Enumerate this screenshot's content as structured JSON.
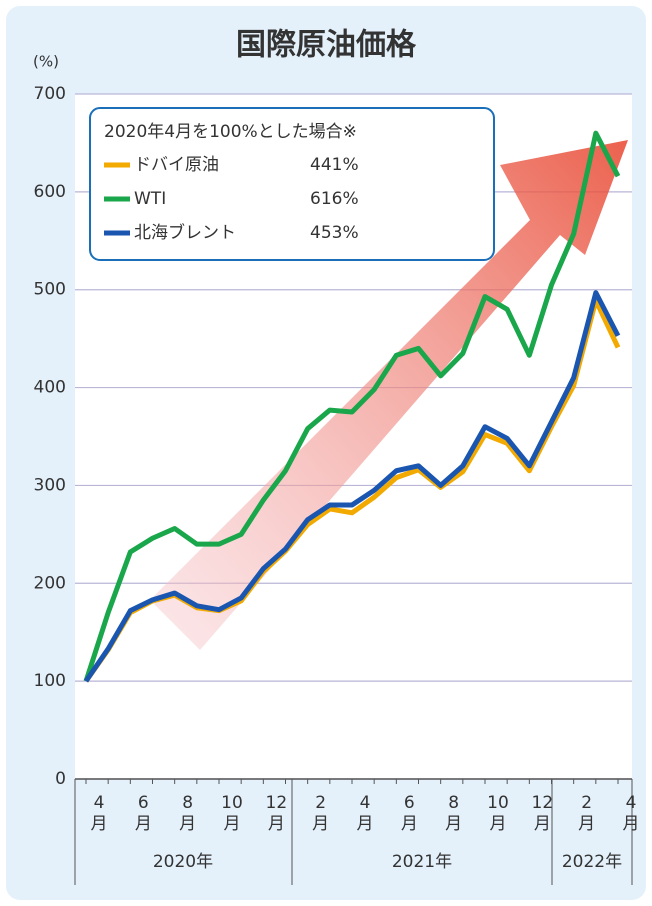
{
  "chart_data": {
    "type": "line",
    "title": "国際原油価格",
    "y_unit": "(%)",
    "legend_title": "2020年4月を100%とした場合※",
    "categories": [
      "4月",
      null,
      "6月",
      null,
      "8月",
      null,
      "10月",
      null,
      "12月",
      null,
      "2月",
      null,
      "4月",
      null,
      "6月",
      null,
      "8月",
      null,
      "10月",
      null,
      "12月",
      null,
      "2月",
      null,
      "4月"
    ],
    "year_labels": [
      "2020年",
      "2021年",
      "2022年"
    ],
    "ylim": [
      0,
      700
    ],
    "yticks": [
      0,
      100,
      200,
      300,
      400,
      500,
      600,
      700
    ],
    "grid": true,
    "series": [
      {
        "name": "ドバイ原油",
        "color": "#f2a900",
        "legend_value": "441%",
        "values": [
          100,
          132,
          170,
          182,
          188,
          175,
          172,
          182,
          212,
          233,
          260,
          276,
          272,
          288,
          308,
          316,
          298,
          314,
          352,
          343,
          315,
          360,
          402,
          489,
          441
        ]
      },
      {
        "name": "WTI",
        "color": "#1aa64a",
        "legend_value": "616%",
        "values": [
          100,
          170,
          232,
          246,
          256,
          240,
          240,
          250,
          285,
          315,
          358,
          377,
          375,
          398,
          433,
          440,
          412,
          435,
          493,
          480,
          433,
          505,
          557,
          660,
          616
        ]
      },
      {
        "name": "北海ブレント",
        "color": "#1a56b0",
        "legend_value": "453%",
        "values": [
          100,
          133,
          172,
          183,
          190,
          177,
          173,
          185,
          215,
          235,
          265,
          280,
          280,
          295,
          315,
          320,
          300,
          320,
          360,
          348,
          320,
          365,
          410,
          497,
          453
        ]
      }
    ]
  }
}
